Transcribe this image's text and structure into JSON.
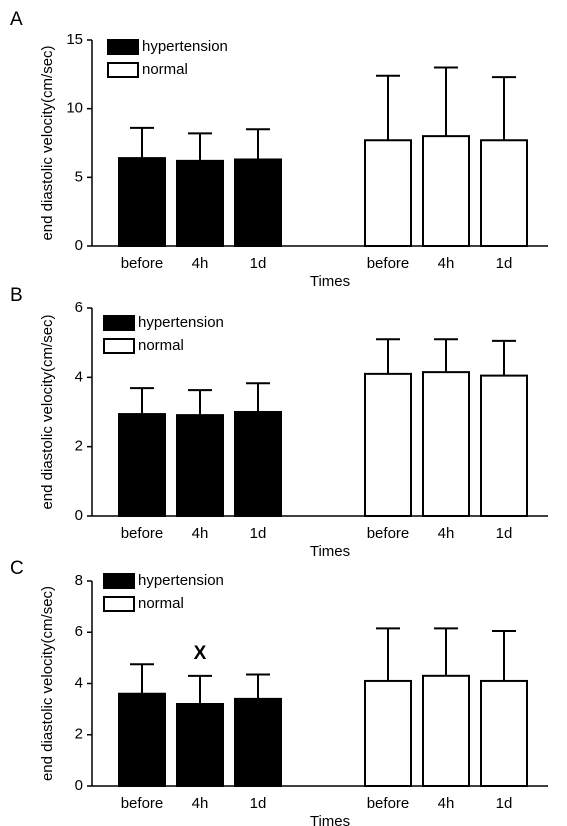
{
  "chart_data": [
    {
      "type": "bar",
      "panel": "A",
      "ylabel": "end diastolic velocity(cm/sec)",
      "xlabel": "Times",
      "categories": [
        "before",
        "4h",
        "1d",
        "before",
        "4h",
        "1d"
      ],
      "series": [
        {
          "name": "hypertension",
          "color": "#000000",
          "values": [
            6.4,
            6.2,
            6.3,
            null,
            null,
            null
          ],
          "errors": [
            2.2,
            2.0,
            2.2,
            null,
            null,
            null
          ]
        },
        {
          "name": "normal",
          "color": "#ffffff",
          "values": [
            null,
            null,
            null,
            7.7,
            8.0,
            7.7
          ],
          "errors": [
            null,
            null,
            null,
            4.7,
            5.0,
            4.6
          ]
        }
      ],
      "ylim": [
        0,
        15
      ],
      "yticks": [
        0,
        5,
        10,
        15
      ]
    },
    {
      "type": "bar",
      "panel": "B",
      "ylabel": "end diastolic velocity(cm/sec)",
      "xlabel": "Times",
      "categories": [
        "before",
        "4h",
        "1d",
        "before",
        "4h",
        "1d"
      ],
      "series": [
        {
          "name": "hypertension",
          "color": "#000000",
          "values": [
            2.94,
            2.91,
            3.0,
            null,
            null,
            null
          ],
          "errors": [
            0.75,
            0.72,
            0.83,
            null,
            null,
            null
          ]
        },
        {
          "name": "normal",
          "color": "#ffffff",
          "values": [
            null,
            null,
            null,
            4.1,
            4.15,
            4.05
          ],
          "errors": [
            null,
            null,
            null,
            1.0,
            0.95,
            1.0
          ]
        }
      ],
      "ylim": [
        0,
        6
      ],
      "yticks": [
        0,
        2,
        4,
        6
      ]
    },
    {
      "type": "bar",
      "panel": "C",
      "ylabel": "end diastolic velocity(cm/sec)",
      "xlabel": "Times",
      "annotation": "X",
      "categories": [
        "before",
        "4h",
        "1d",
        "before",
        "4h",
        "1d"
      ],
      "series": [
        {
          "name": "hypertension",
          "color": "#000000",
          "values": [
            3.6,
            3.2,
            3.4,
            null,
            null,
            null
          ],
          "errors": [
            1.15,
            1.1,
            0.95,
            null,
            null,
            null
          ]
        },
        {
          "name": "normal",
          "color": "#ffffff",
          "values": [
            null,
            null,
            null,
            4.1,
            4.3,
            4.1
          ],
          "errors": [
            null,
            null,
            null,
            2.05,
            1.85,
            1.95
          ]
        }
      ],
      "ylim": [
        0,
        8
      ],
      "yticks": [
        0,
        2,
        4,
        6,
        8
      ]
    }
  ]
}
